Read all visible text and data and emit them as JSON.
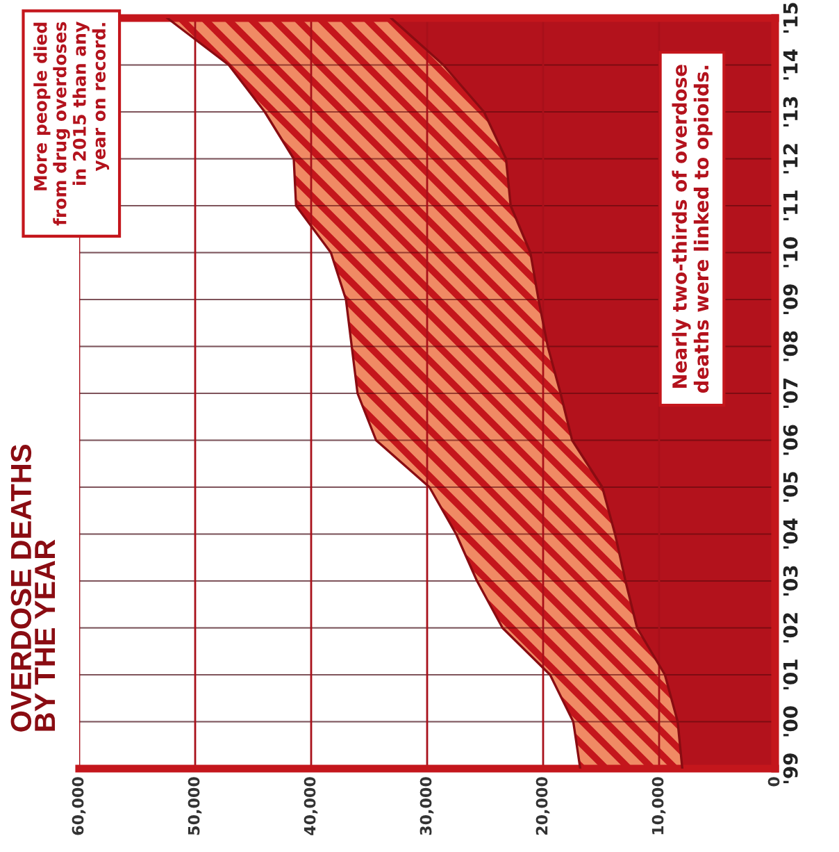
{
  "chart_data": {
    "type": "area",
    "orientation": "horizontal",
    "stacked": true,
    "title": "OVERDOSE DEATHS\nBY THE YEAR",
    "categories": [
      "'15",
      "'14",
      "'13",
      "'12",
      "'11",
      "'10",
      "'09",
      "'08",
      "'07",
      "'06",
      "'05",
      "'04",
      "'03",
      "'02",
      "'01",
      "'00",
      "'99"
    ],
    "series": [
      {
        "color": "#b3121c",
        "values": [
          33100,
          28600,
          25100,
          23200,
          22800,
          21100,
          20400,
          19600,
          18500,
          17500,
          14900,
          13800,
          12900,
          11900,
          9500,
          8400,
          8000
        ]
      },
      {
        "color": "#f08a64",
        "values": [
          19300,
          18500,
          18900,
          18300,
          18500,
          17200,
          16600,
          16900,
          17500,
          16900,
          14900,
          13700,
          12800,
          11600,
          9900,
          9000,
          8800
        ]
      }
    ],
    "xlim": [
      60000,
      0
    ],
    "xticks": [
      {
        "value": 60000,
        "label": "60,000"
      },
      {
        "value": 50000,
        "label": "50,000"
      },
      {
        "value": 40000,
        "label": "40,000"
      },
      {
        "value": 30000,
        "label": "30,000"
      },
      {
        "value": 20000,
        "label": "20,000"
      },
      {
        "value": 10000,
        "label": "10,000"
      },
      0
    ],
    "grid": true,
    "annotations": [
      "More people died\nfrom drug overdoses\nin 2015 than any\nyear on record.",
      "Nearly two-thirds of overdose\ndeaths were linked to opioids."
    ]
  }
}
